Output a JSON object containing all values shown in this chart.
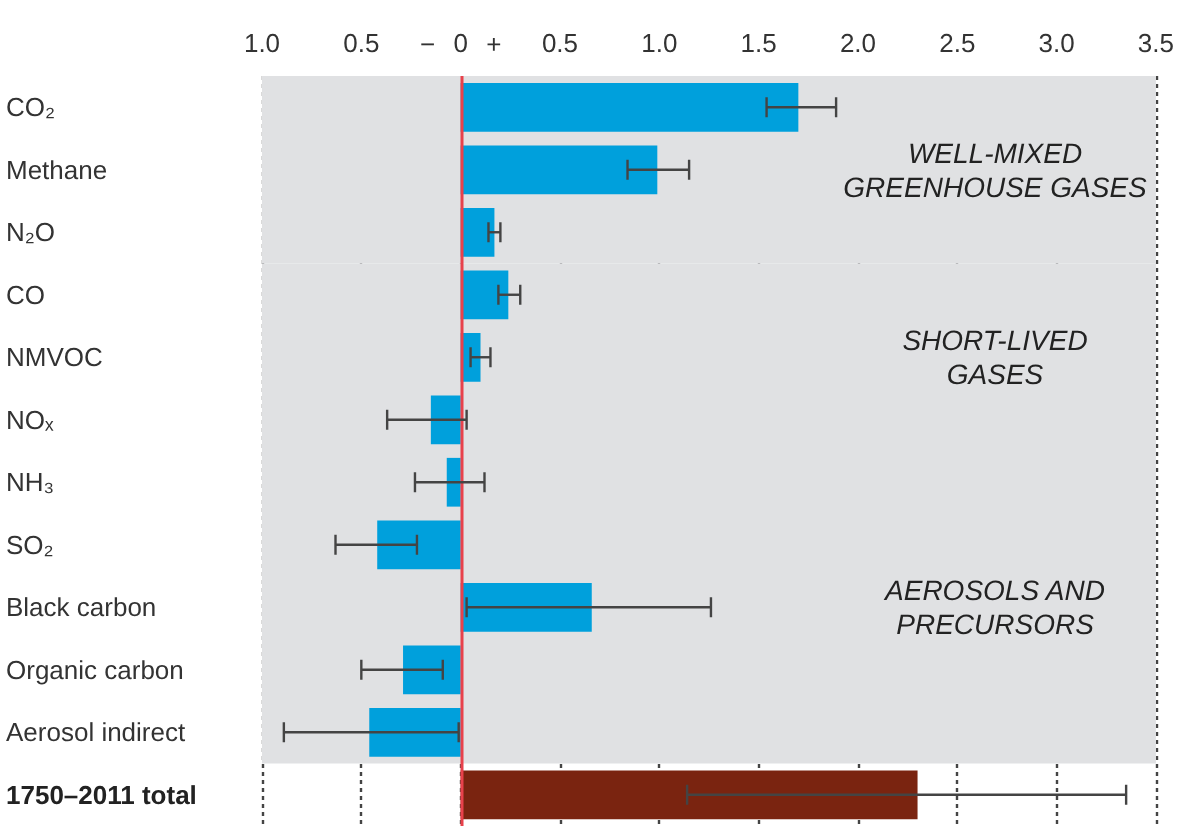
{
  "chart_data": {
    "type": "bar",
    "orientation": "horizontal",
    "categories": [
      "CO₂",
      "Methane",
      "N₂O",
      "CO",
      "NMVOC",
      "NOₓ",
      "NH₃",
      "SO₂",
      "Black carbon",
      "Organic carbon",
      "Aerosol indirect",
      "1750–2011 total"
    ],
    "values": [
      1.7,
      0.99,
      0.17,
      0.24,
      0.1,
      -0.15,
      -0.07,
      -0.42,
      0.66,
      -0.29,
      -0.46,
      2.3
    ],
    "colors": [
      "#00a0dc",
      "#00a0dc",
      "#00a0dc",
      "#00a0dc",
      "#00a0dc",
      "#00a0dc",
      "#00a0dc",
      "#00a0dc",
      "#00a0dc",
      "#00a0dc",
      "#00a0dc",
      "#7a2410"
    ],
    "errors": [
      [
        1.54,
        1.89
      ],
      [
        0.84,
        1.15
      ],
      [
        0.14,
        0.2
      ],
      [
        0.19,
        0.3
      ],
      [
        0.05,
        0.15
      ],
      [
        -0.37,
        0.03
      ],
      [
        -0.23,
        0.12
      ],
      [
        -0.63,
        -0.22
      ],
      [
        0.03,
        1.26
      ],
      [
        -0.5,
        -0.09
      ],
      [
        -0.89,
        -0.01
      ],
      [
        1.14,
        3.35
      ]
    ],
    "xlim": [
      -1.0,
      3.5
    ],
    "xticks": [
      {
        "value": -1.0,
        "label": "1.0"
      },
      {
        "value": -0.5,
        "label": "0.5"
      },
      0,
      {
        "value": 0.5,
        "label": "0.5"
      },
      {
        "value": 1.0,
        "label": "1.0"
      },
      {
        "value": 1.5,
        "label": "1.5"
      },
      {
        "value": 2.0,
        "label": "2.0"
      },
      {
        "value": 2.5,
        "label": "2.5"
      },
      {
        "value": 3.0,
        "label": "3.0"
      },
      {
        "value": 3.5,
        "label": "3.5"
      }
    ],
    "grid": "x",
    "ref_lines": [
      {
        "axis": "x",
        "value": 0,
        "color": "#e8414b"
      }
    ],
    "bands": [
      {
        "axis": "y",
        "from": "CO₂",
        "to": "N₂O",
        "color": "#e0e1e3"
      },
      {
        "axis": "y",
        "from": "CO",
        "to": "NOₓ",
        "color": "#e0e1e3"
      },
      {
        "axis": "y",
        "from": "NH₃",
        "to": "Aerosol indirect",
        "color": "#e0e1e3"
      }
    ],
    "annotations": [
      "WELL-MIXED\nGREENHOUSE GASES",
      "SHORT-LIVED\nGASES",
      "AEROSOLS AND\nPRECURSORS",
      "−",
      "+"
    ]
  }
}
